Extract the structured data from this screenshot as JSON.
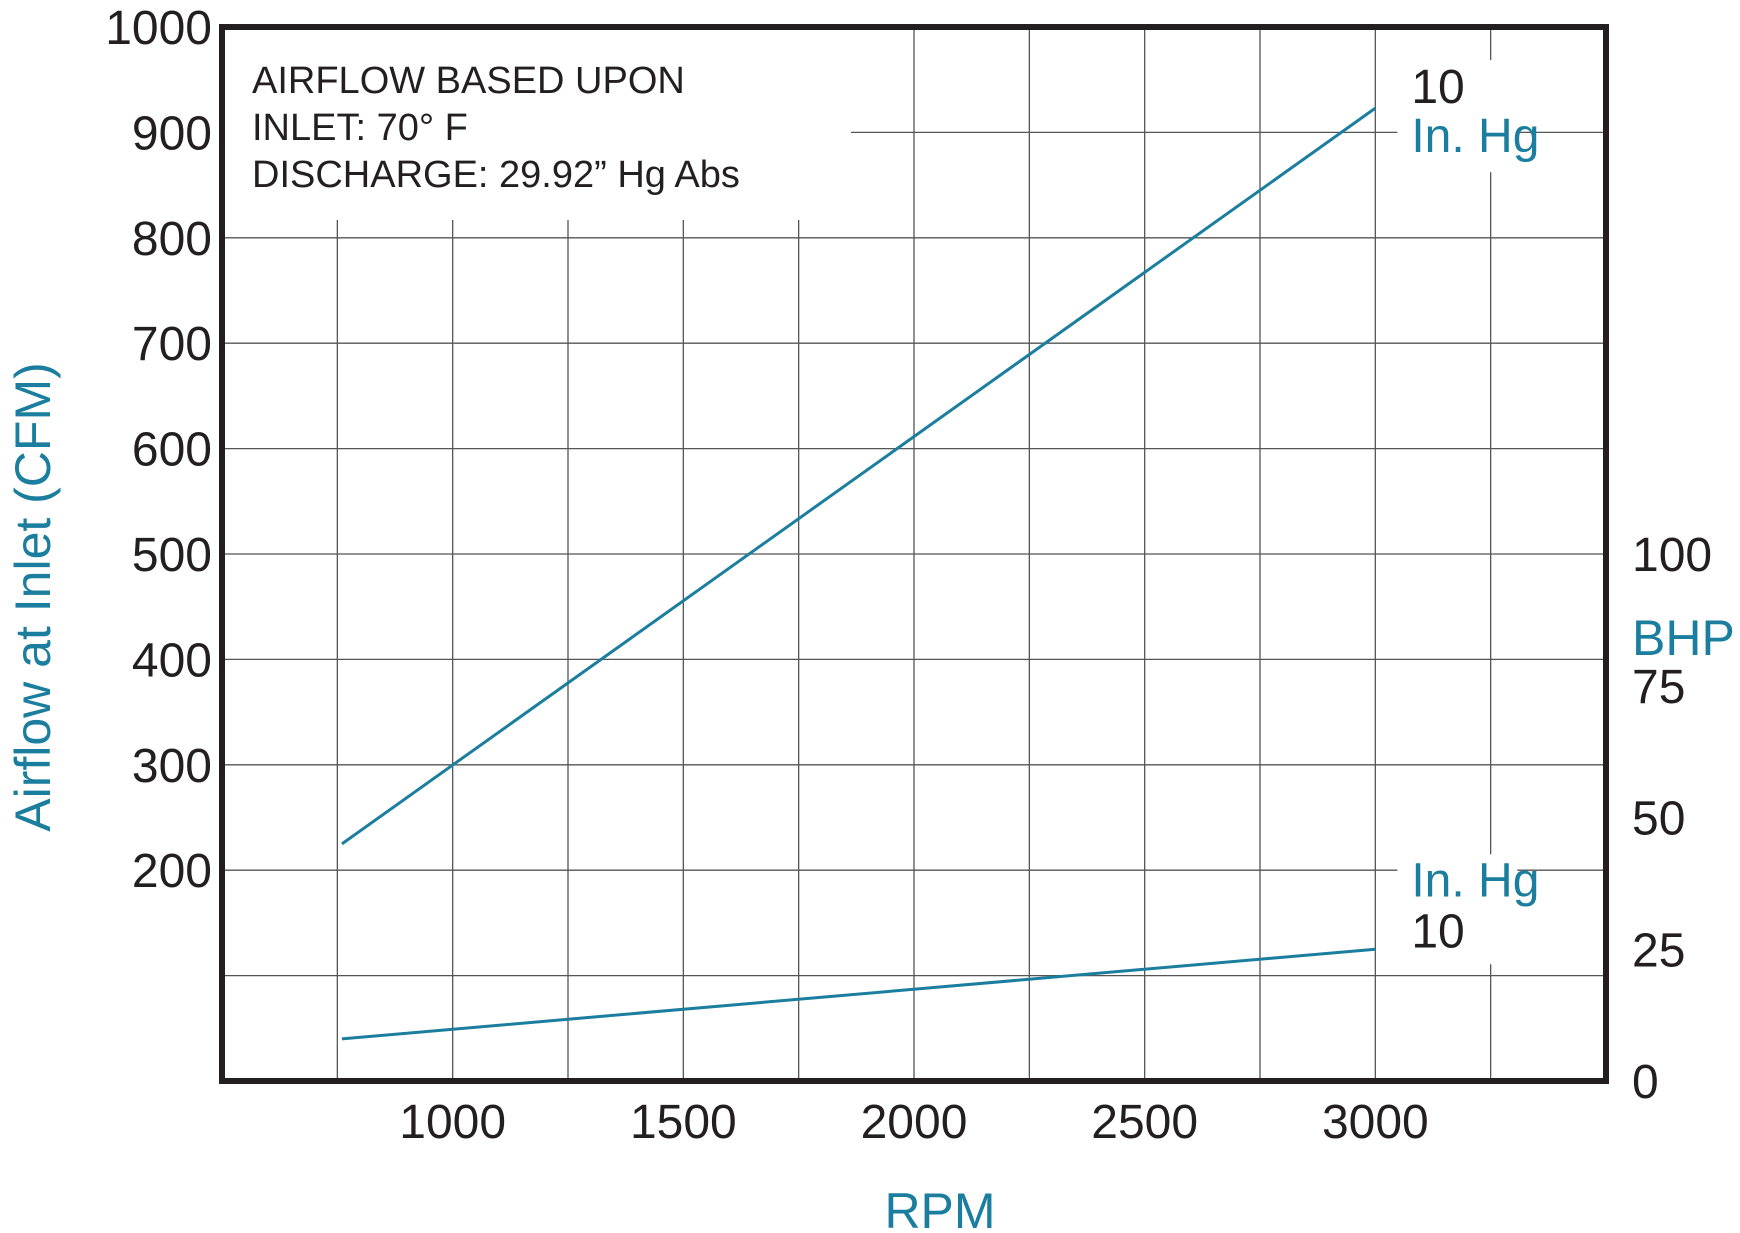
{
  "colors": {
    "accent": "#1b7e9e",
    "text": "#231f20",
    "grid": "#555555"
  },
  "chart_data": {
    "type": "line",
    "xlabel": "RPM",
    "ylabel": "Airflow at Inlet (CFM)",
    "y2label": "BHP",
    "x_ticks": [
      1000,
      1500,
      2000,
      2500,
      3000
    ],
    "xlim": [
      500,
      3500
    ],
    "y_ticks": [
      200,
      300,
      400,
      500,
      600,
      700,
      800,
      900,
      1000
    ],
    "ylim": [
      0,
      1000
    ],
    "y2_ticks": [
      0,
      25,
      50,
      75,
      100
    ],
    "y2lim": [
      0,
      100
    ],
    "grid": true,
    "note_lines": [
      "AIRFLOW BASED UPON",
      "INLET:  70° F",
      "DISCHARGE:  29.92” Hg Abs"
    ],
    "series": [
      {
        "kind": "airflow",
        "axis": "left",
        "label_value": "10",
        "label_unit": "In. Hg",
        "x": [
          760,
          3000
        ],
        "y": [
          225,
          923
        ]
      },
      {
        "kind": "bhp",
        "axis": "right",
        "label_value": "10",
        "label_unit": "In. Hg",
        "x": [
          760,
          3000
        ],
        "y": [
          8,
          25
        ]
      }
    ]
  }
}
